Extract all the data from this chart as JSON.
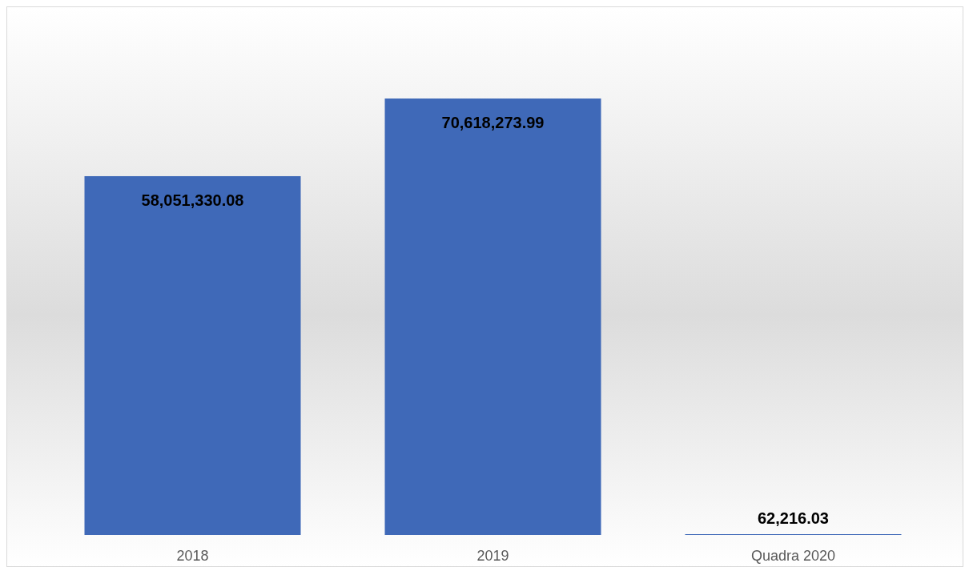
{
  "chart_data": {
    "type": "bar",
    "categories": [
      "2018",
      "2019",
      "Quadra 2020"
    ],
    "values": [
      58051330.08,
      70618273.99,
      62216.03
    ],
    "color": "#3f69b8",
    "value_labels": [
      "58,051,330.08",
      "70,618,273.99",
      "62,216.03"
    ]
  }
}
